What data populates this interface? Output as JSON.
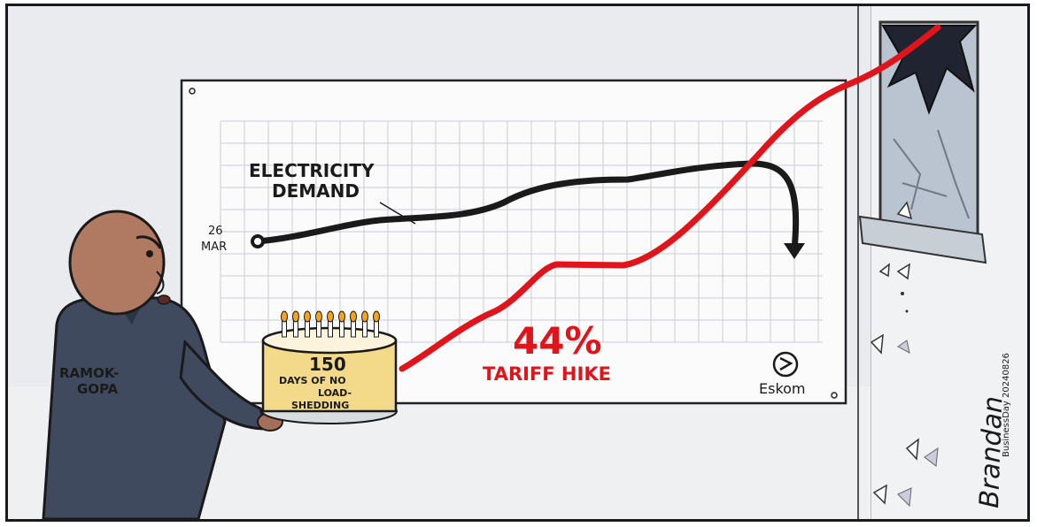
{
  "chart_board": {
    "demand_label_line1": "ELECTRICITY",
    "demand_label_line2": "DEMAND",
    "start_label_day": "26",
    "start_label_month": "MAR",
    "hike_percent": "44%",
    "hike_label": "TARIFF HIKE",
    "logo_text": "Eskom"
  },
  "character": {
    "name_line1": "RAMOK-",
    "name_line2": "GOPA"
  },
  "cake": {
    "line1": "150",
    "line2": "DAYS OF NO",
    "line3": "LOAD-",
    "line4": "SHEDDING"
  },
  "credits": {
    "signature": "Brandan",
    "publication": "BusinessDay 20240826"
  },
  "colors": {
    "red_line": "#e0141b",
    "black_line": "#1a1a1a",
    "suit": "#3f4a5e",
    "cake_frosting": "#f3d98a"
  }
}
